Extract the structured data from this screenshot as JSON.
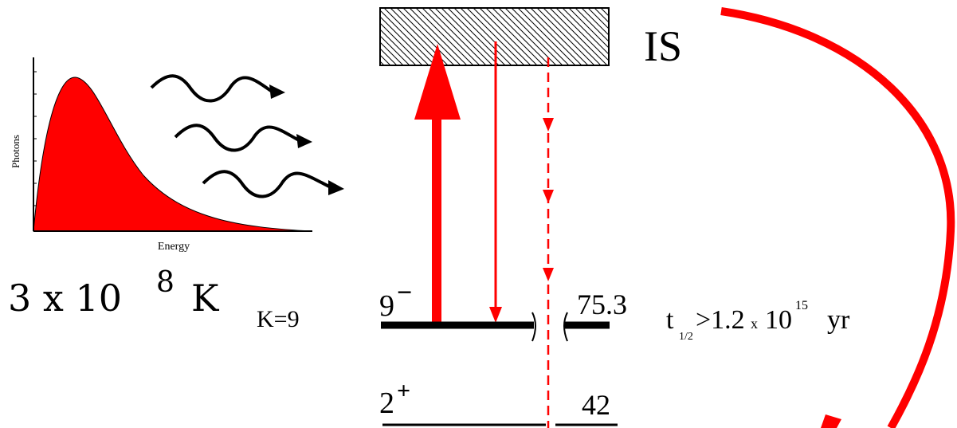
{
  "spectrum": {
    "y_label": "Photons",
    "x_label": "Energy"
  },
  "temperature": {
    "mantissa": "3 x 10",
    "exponent": "8",
    "unit": "K"
  },
  "intermediate_state": "IS",
  "levels": [
    {
      "k_label": "K=9",
      "spin": "9",
      "parity": "−",
      "energy": "75.3"
    },
    {
      "spin": "2",
      "parity": "+",
      "energy": "42"
    }
  ],
  "half_life": {
    "symbol": "t",
    "subscript": "1/2",
    "relation": ">1.2",
    "times": "x",
    "base": "10",
    "exponent": "15",
    "unit": "yr"
  }
}
